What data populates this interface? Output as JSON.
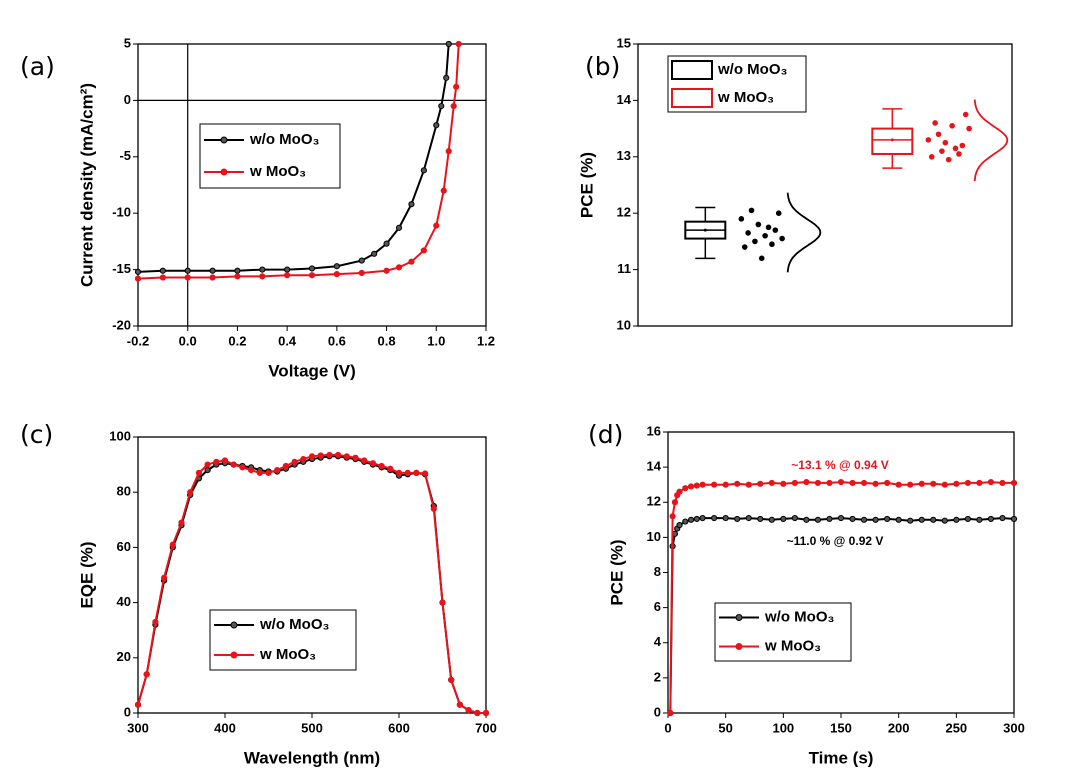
{
  "chart_data": [
    {
      "type": "line",
      "panel_label": "(a)",
      "x_label": "Voltage (V)",
      "y_label": "Current density (mA/cm²)",
      "xlim": [
        -0.2,
        1.2
      ],
      "xticks": [
        -0.2,
        {
          "value": 0,
          "label": "0.0"
        },
        0.2,
        0.4,
        0.6,
        0.8,
        {
          "value": 1,
          "label": "1.0"
        },
        1.2
      ],
      "ylim": [
        -20,
        5
      ],
      "yticks": [
        -20,
        -15,
        -10,
        -5,
        0,
        5
      ],
      "hlines": [
        0
      ],
      "vlines": [
        0
      ],
      "legend": "upper left",
      "series": [
        {
          "name": "w/o MoO₃",
          "color": "#000000",
          "x": [
            -0.2,
            -0.1,
            0,
            0.1,
            0.2,
            0.3,
            0.4,
            0.5,
            0.6,
            0.7,
            0.75,
            0.8,
            0.85,
            0.9,
            0.95,
            1.0,
            1.02,
            1.04,
            1.05
          ],
          "values": [
            -15.2,
            -15.1,
            -15.1,
            -15.1,
            -15.1,
            -15.0,
            -15.0,
            -14.9,
            -14.7,
            -14.2,
            -13.6,
            -12.7,
            -11.3,
            -9.2,
            -6.2,
            -2.2,
            -0.5,
            2.0,
            5.0
          ]
        },
        {
          "name": "w MoO₃",
          "color": "#e8141b",
          "x": [
            -0.2,
            -0.1,
            0,
            0.1,
            0.2,
            0.3,
            0.4,
            0.5,
            0.6,
            0.7,
            0.8,
            0.85,
            0.9,
            0.95,
            1.0,
            1.03,
            1.05,
            1.07,
            1.08,
            1.09
          ],
          "values": [
            -15.8,
            -15.7,
            -15.7,
            -15.7,
            -15.6,
            -15.6,
            -15.5,
            -15.5,
            -15.4,
            -15.3,
            -15.1,
            -14.8,
            -14.3,
            -13.3,
            -11.1,
            -8.0,
            -4.5,
            -0.5,
            1.2,
            5.0
          ]
        }
      ]
    },
    {
      "type": "box",
      "panel_label": "(b)",
      "y_label": "PCE (%)",
      "ylim": [
        10,
        15
      ],
      "yticks": [
        10,
        11,
        12,
        13,
        14,
        15
      ],
      "legend": "upper left",
      "series": [
        {
          "name": "w/o MoO₃",
          "color": "#000000",
          "stats": {
            "min": 11.2,
            "q1": 11.55,
            "median": 11.7,
            "q3": 11.85,
            "max": 12.1,
            "mean": 11.7
          },
          "points": [
            11.9,
            11.8,
            11.7,
            11.65,
            11.6,
            11.55,
            11.5,
            11.45,
            11.4,
            11.2,
            12.0,
            12.05,
            11.75
          ]
        },
        {
          "name": "w MoO₃",
          "color": "#e8141b",
          "stats": {
            "min": 12.8,
            "q1": 13.05,
            "median": 13.3,
            "q3": 13.5,
            "max": 13.85,
            "mean": 13.3
          },
          "points": [
            13.3,
            13.25,
            13.2,
            13.6,
            13.55,
            13.5,
            13.1,
            13.05,
            13.0,
            12.95,
            13.75,
            13.4,
            13.15
          ]
        }
      ]
    },
    {
      "type": "line",
      "panel_label": "(c)",
      "x_label": "Wavelength (nm)",
      "y_label": "EQE (%)",
      "xlim": [
        300,
        700
      ],
      "xticks": [
        300,
        400,
        500,
        600,
        700
      ],
      "ylim": [
        0,
        100
      ],
      "yticks": [
        0,
        20,
        40,
        60,
        80,
        100
      ],
      "legend": "lower center",
      "x": [
        300,
        310,
        320,
        330,
        340,
        350,
        360,
        370,
        380,
        390,
        400,
        410,
        420,
        430,
        440,
        450,
        460,
        470,
        480,
        490,
        500,
        510,
        520,
        530,
        540,
        550,
        560,
        570,
        580,
        590,
        600,
        610,
        620,
        630,
        640,
        650,
        660,
        670,
        680,
        690,
        700
      ],
      "series": [
        {
          "name": "w/o MoO₃",
          "color": "#000000",
          "values": [
            3,
            14,
            32,
            48,
            60,
            68,
            79,
            85,
            88,
            90,
            90.5,
            90,
            89.5,
            89,
            88,
            87.5,
            87.5,
            88.5,
            90,
            91,
            92,
            92.5,
            93,
            93,
            92.5,
            92,
            91,
            90,
            89,
            88,
            86,
            86.5,
            87,
            86.5,
            75,
            40,
            12,
            3,
            1,
            0,
            0
          ]
        },
        {
          "name": "w  MoO₃",
          "color": "#e8141b",
          "values": [
            3,
            14,
            33,
            49,
            61,
            69,
            80,
            87,
            90,
            91,
            91.5,
            90,
            89,
            88,
            87,
            87,
            88,
            89.5,
            91,
            92,
            93,
            93.3,
            93.5,
            93.5,
            93,
            92.5,
            91.5,
            90.5,
            89.5,
            88.5,
            87,
            87,
            87,
            86.8,
            74,
            40,
            12,
            3,
            1,
            0,
            0
          ]
        }
      ]
    },
    {
      "type": "line",
      "panel_label": "(d)",
      "x_label": "Time (s)",
      "y_label": "PCE (%)",
      "xlim": [
        0,
        300
      ],
      "xticks": [
        0,
        50,
        100,
        150,
        200,
        250,
        300
      ],
      "ylim": [
        0,
        16
      ],
      "yticks": [
        0,
        2,
        4,
        6,
        8,
        10,
        12,
        14,
        16
      ],
      "legend": "center left",
      "annotations": [
        {
          "text": "~13.1 % @ 0.94 V",
          "color": "#e8141b"
        },
        {
          "text": "~11.0 % @ 0.92 V",
          "color": "#000000"
        }
      ],
      "x": [
        2,
        4,
        6,
        8,
        10,
        15,
        20,
        25,
        30,
        40,
        50,
        60,
        70,
        80,
        90,
        100,
        110,
        120,
        130,
        140,
        150,
        160,
        170,
        180,
        190,
        200,
        210,
        220,
        230,
        240,
        250,
        260,
        270,
        280,
        290,
        300
      ],
      "series": [
        {
          "name": "w/o MoO₃",
          "color": "#000000",
          "values": [
            0,
            9.5,
            10.2,
            10.5,
            10.7,
            10.9,
            11.0,
            11.05,
            11.1,
            11.1,
            11.1,
            11.05,
            11.1,
            11.05,
            11.0,
            11.05,
            11.1,
            11.0,
            11.0,
            11.05,
            11.1,
            11.05,
            11.0,
            11.0,
            11.05,
            11.0,
            10.95,
            11.0,
            11.0,
            10.95,
            11.0,
            11.05,
            11.0,
            11.05,
            11.1,
            11.05
          ]
        },
        {
          "name": "w MoO₃",
          "color": "#e8141b",
          "values": [
            0,
            11.2,
            12.0,
            12.4,
            12.6,
            12.8,
            12.9,
            12.95,
            13.0,
            13.0,
            13.0,
            13.05,
            13.0,
            13.05,
            13.1,
            13.05,
            13.1,
            13.15,
            13.1,
            13.1,
            13.15,
            13.1,
            13.1,
            13.05,
            13.1,
            13.0,
            13.0,
            13.05,
            13.05,
            13.0,
            13.05,
            13.1,
            13.1,
            13.15,
            13.1,
            13.1
          ]
        }
      ]
    }
  ]
}
